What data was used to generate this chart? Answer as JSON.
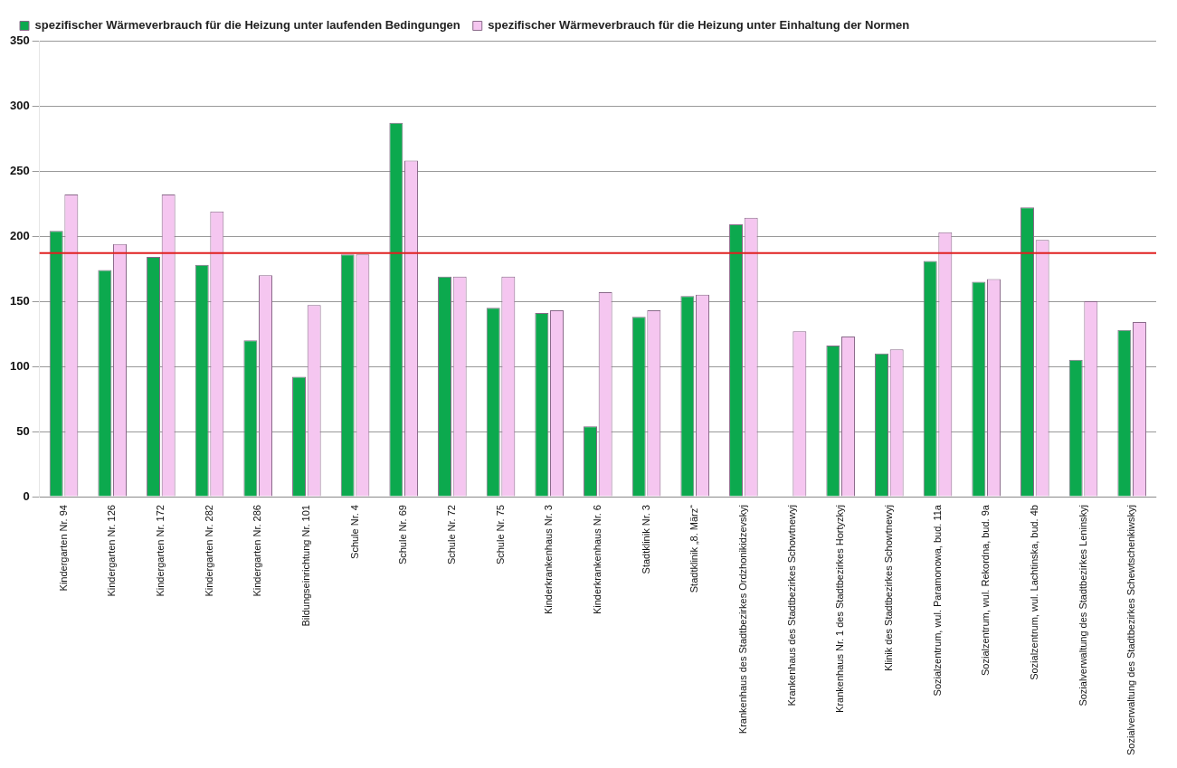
{
  "chart_data": {
    "type": "bar",
    "categories": [
      "Kindergarten Nr. 94",
      "Kindergarten Nr. 126",
      "Kindergarten Nr. 172",
      "Kindergarten Nr. 282",
      "Kindergarten Nr. 286",
      "Bildungseinrichtung Nr. 101",
      "Schule Nr. 4",
      "Schule Nr. 69",
      "Schule Nr. 72",
      "Schule Nr. 75",
      "Kinderkrankenhaus Nr. 3",
      "Kinderkrankenhaus Nr. 6",
      "Stadtklinik Nr. 3",
      "Stadtklinik „8. März“",
      "Krankenhaus des Stadtbezirkes Ordzhonikidzevskyj",
      "Krankenhaus des Stadtbezirkes Schowtnewyj",
      "Krankenhaus Nr. 1 des Stadtbezirkes Hortyzkyj",
      "Klinik des Stadtbezirkes Schowtnewyj",
      "Sozialzentrum, wul. Paramonowa, bud. 11a",
      "Sozialzentrum, wul. Rekordna, bud. 9a",
      "Sozialzentrum, wul. Lachtinska, bud. 4b",
      "Sozialverwaltung des Stadtbezirkes Leninskyj",
      "Sozialverwaltung des Stadtbezirkes Schewtschenkiwskyj"
    ],
    "series": [
      {
        "name": "spezifischer Wärmeverbrauch für die Heizung unter laufenden Bedingungen",
        "color": "#0ca94e",
        "values": [
          204,
          174,
          184,
          178,
          120,
          92,
          186,
          287,
          169,
          145,
          141,
          54,
          138,
          154,
          209,
          null,
          116,
          110,
          181,
          165,
          222,
          105,
          128
        ]
      },
      {
        "name": "spezifischer Wärmeverbrauch für die Heizung unter Einhaltung der Normen",
        "color": "#f5c6f0",
        "values": [
          232,
          194,
          232,
          219,
          170,
          147,
          186,
          258,
          169,
          169,
          143,
          157,
          143,
          155,
          214,
          127,
          123,
          113,
          203,
          167,
          197,
          150,
          134
        ]
      }
    ],
    "ylim": [
      0,
      350
    ],
    "yticks": [
      0,
      50,
      100,
      150,
      200,
      250,
      300,
      350
    ],
    "grid": "y",
    "legend": "top left",
    "ref_lines": [
      {
        "axis": "y",
        "value": 187,
        "color": "#e02020"
      }
    ]
  }
}
